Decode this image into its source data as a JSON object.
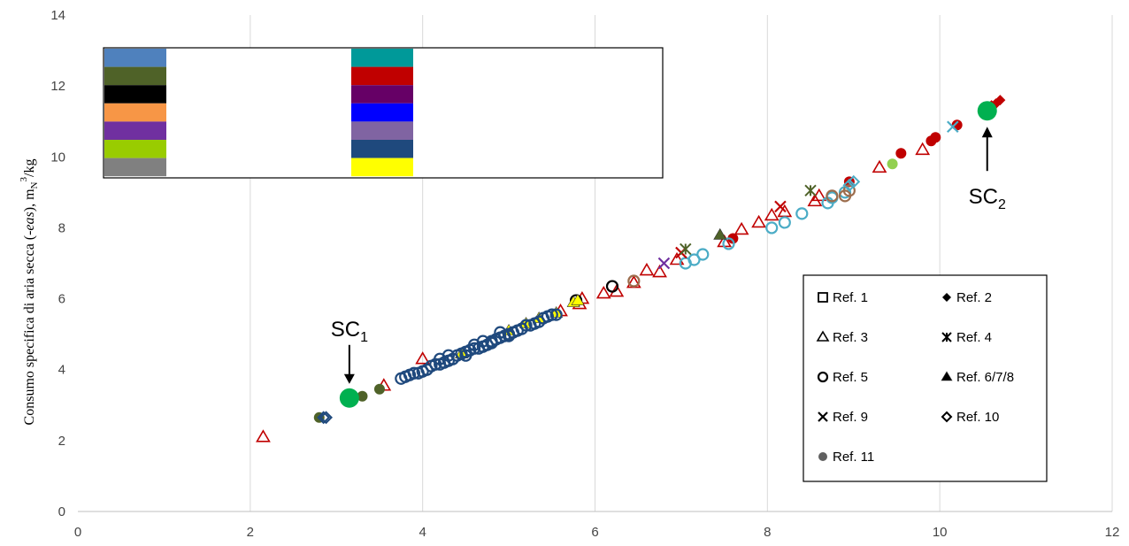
{
  "chart_data": {
    "type": "scatter",
    "title": "",
    "xlabel": "",
    "ylabel": "Consumo specifica di aria secca (-eas), mN³/kg",
    "ylabel_parts": {
      "main": "Consumo specifica di aria secca (-",
      "italic": "eas",
      "end": "), m",
      "sub": "N",
      "sup": "3",
      "tail": "/kg"
    },
    "xlim": [
      0,
      12
    ],
    "ylim": [
      0,
      14
    ],
    "xticks": [
      "0",
      "2",
      "4",
      "6",
      "8",
      "10",
      "12"
    ],
    "yticks": [
      "0",
      "2",
      "4",
      "6",
      "8",
      "10",
      "12",
      "14"
    ],
    "grid": "vertical",
    "colors": {
      "red": "#c00000",
      "navy": "#1f497d",
      "lightblue": "#4bacc6",
      "yellow": "#ffff00",
      "brown": "#9c6d4d",
      "green": "#00b050",
      "darkgreen": "#4f6228",
      "purple": "#7030a0",
      "lime": "#92d050",
      "black": "#000000"
    },
    "color_key": {
      "left": [
        "#4f81bd",
        "#4f6228",
        "#000000",
        "#f79646",
        "#7030a0",
        "#99cc00",
        "#808080"
      ],
      "right": [
        "#009999",
        "#c00000",
        "#660066",
        "#0000ff",
        "#8064a2",
        "#1f497d",
        "#ffff00"
      ]
    },
    "legend": {
      "position": "bottom-right",
      "entries": [
        {
          "label": "Ref. 1",
          "marker": "square-open"
        },
        {
          "label": "Ref. 2",
          "marker": "diamond-filled"
        },
        {
          "label": "Ref. 3",
          "marker": "triangle-open"
        },
        {
          "label": "Ref. 4",
          "marker": "star"
        },
        {
          "label": "Ref. 5",
          "marker": "circle-open"
        },
        {
          "label": "Ref. 6/7/8",
          "marker": "triangle-filled"
        },
        {
          "label": "Ref. 9",
          "marker": "x"
        },
        {
          "label": "Ref. 10",
          "marker": "diamond-open"
        },
        {
          "label": "Ref. 11",
          "marker": "circle-filled"
        }
      ]
    },
    "series": [
      {
        "marker": "triangle-open",
        "color": "#c00000",
        "points": [
          [
            2.15,
            2.1
          ],
          [
            3.55,
            3.55
          ],
          [
            4.0,
            4.3
          ],
          [
            5.6,
            5.65
          ],
          [
            5.82,
            5.85
          ],
          [
            5.85,
            6.0
          ],
          [
            6.1,
            6.15
          ],
          [
            6.25,
            6.2
          ],
          [
            6.45,
            6.45
          ],
          [
            6.6,
            6.8
          ],
          [
            6.75,
            6.75
          ],
          [
            6.95,
            7.1
          ],
          [
            7.5,
            7.6
          ],
          [
            7.7,
            7.95
          ],
          [
            7.9,
            8.15
          ],
          [
            8.05,
            8.35
          ],
          [
            8.2,
            8.45
          ],
          [
            8.55,
            8.75
          ],
          [
            8.6,
            8.9
          ],
          [
            9.3,
            9.7
          ],
          [
            9.8,
            10.2
          ]
        ]
      },
      {
        "marker": "circle-filled",
        "color": "#c00000",
        "points": [
          [
            9.55,
            10.1
          ],
          [
            9.9,
            10.45
          ],
          [
            9.95,
            10.55
          ],
          [
            10.2,
            10.9
          ],
          [
            10.6,
            11.4
          ],
          [
            8.95,
            9.3
          ],
          [
            7.6,
            7.7
          ]
        ]
      },
      {
        "marker": "diamond-filled",
        "color": "#c00000",
        "points": [
          [
            10.6,
            11.45
          ],
          [
            10.7,
            11.6
          ],
          [
            10.65,
            11.5
          ]
        ]
      },
      {
        "marker": "circle-open",
        "color": "#4bacc6",
        "points": [
          [
            7.05,
            7.0
          ],
          [
            7.15,
            7.1
          ],
          [
            7.25,
            7.25
          ],
          [
            7.55,
            7.55
          ],
          [
            8.05,
            8.0
          ],
          [
            8.2,
            8.15
          ],
          [
            8.4,
            8.4
          ],
          [
            8.7,
            8.7
          ],
          [
            8.75,
            8.85
          ],
          [
            8.9,
            9.0
          ]
        ]
      },
      {
        "marker": "circle-open",
        "color": "#9c6d4d",
        "points": [
          [
            6.45,
            6.5
          ],
          [
            8.75,
            8.9
          ],
          [
            8.9,
            8.9
          ],
          [
            8.95,
            9.05
          ]
        ]
      },
      {
        "marker": "circle-open",
        "color": "#000000",
        "points": [
          [
            6.2,
            6.35
          ],
          [
            5.78,
            5.95
          ]
        ]
      },
      {
        "marker": "diamond-open",
        "color": "#4bacc6",
        "points": [
          [
            8.95,
            9.2
          ],
          [
            9.0,
            9.3
          ]
        ]
      },
      {
        "marker": "x",
        "color": "#4bacc6",
        "points": [
          [
            10.15,
            10.85
          ]
        ]
      },
      {
        "marker": "x",
        "color": "#c00000",
        "points": [
          [
            8.15,
            8.6
          ],
          [
            7.0,
            7.3
          ]
        ]
      },
      {
        "marker": "x",
        "color": "#7030a0",
        "points": [
          [
            6.8,
            7.0
          ]
        ]
      },
      {
        "marker": "star",
        "color": "#4f6228",
        "points": [
          [
            8.5,
            9.05
          ],
          [
            7.05,
            7.4
          ]
        ]
      },
      {
        "marker": "triangle-filled",
        "color": "#4f6228",
        "points": [
          [
            7.45,
            7.8
          ]
        ]
      },
      {
        "marker": "triangle-filled",
        "color": "#ffff00",
        "points": [
          [
            4.45,
            4.45
          ],
          [
            5.0,
            5.1
          ],
          [
            5.2,
            5.3
          ],
          [
            5.35,
            5.45
          ],
          [
            5.55,
            5.6
          ],
          [
            5.75,
            5.9
          ],
          [
            5.8,
            5.95
          ]
        ]
      },
      {
        "marker": "circle-filled",
        "color": "#92d050",
        "points": [
          [
            9.45,
            9.8
          ]
        ]
      },
      {
        "marker": "circle-filled",
        "color": "#4f6228",
        "points": [
          [
            2.8,
            2.65
          ],
          [
            3.3,
            3.25
          ],
          [
            3.5,
            3.45
          ]
        ]
      },
      {
        "marker": "diamond-open",
        "color": "#1f497d",
        "points": [
          [
            2.85,
            2.65
          ],
          [
            2.88,
            2.65
          ]
        ]
      },
      {
        "marker": "circle-open",
        "color": "#1f497d",
        "points": [
          [
            3.75,
            3.75
          ],
          [
            3.8,
            3.8
          ],
          [
            3.85,
            3.85
          ],
          [
            3.9,
            3.9
          ],
          [
            3.95,
            3.9
          ],
          [
            4.0,
            3.95
          ],
          [
            4.05,
            4.0
          ],
          [
            4.1,
            4.1
          ],
          [
            4.15,
            4.15
          ],
          [
            4.2,
            4.15
          ],
          [
            4.25,
            4.2
          ],
          [
            4.3,
            4.25
          ],
          [
            4.35,
            4.3
          ],
          [
            4.4,
            4.4
          ],
          [
            4.45,
            4.45
          ],
          [
            4.5,
            4.5
          ],
          [
            4.55,
            4.55
          ],
          [
            4.6,
            4.6
          ],
          [
            4.65,
            4.6
          ],
          [
            4.7,
            4.65
          ],
          [
            4.75,
            4.7
          ],
          [
            4.8,
            4.8
          ],
          [
            4.85,
            4.85
          ],
          [
            4.9,
            4.9
          ],
          [
            4.95,
            4.95
          ],
          [
            5.0,
            5.0
          ],
          [
            5.05,
            5.05
          ],
          [
            5.1,
            5.1
          ],
          [
            5.15,
            5.15
          ],
          [
            5.2,
            5.25
          ],
          [
            5.25,
            5.25
          ],
          [
            5.3,
            5.3
          ],
          [
            5.35,
            5.35
          ],
          [
            5.4,
            5.45
          ],
          [
            5.45,
            5.5
          ],
          [
            5.5,
            5.55
          ],
          [
            5.55,
            5.55
          ],
          [
            4.6,
            4.7
          ],
          [
            4.7,
            4.8
          ],
          [
            4.8,
            4.75
          ],
          [
            4.2,
            4.3
          ],
          [
            4.3,
            4.4
          ],
          [
            4.5,
            4.4
          ],
          [
            4.9,
            5.05
          ],
          [
            5.0,
            4.95
          ]
        ]
      },
      {
        "marker": "circle-filled",
        "color": "#00b050",
        "size": "large",
        "points": [
          [
            3.15,
            3.2
          ],
          [
            10.55,
            11.3
          ]
        ]
      }
    ],
    "annotations": [
      {
        "label": "SC",
        "sub": "1",
        "x": 3.15,
        "y": 3.2
      },
      {
        "label": "SC",
        "sub": "2",
        "x": 10.55,
        "y": 11.3
      }
    ]
  }
}
